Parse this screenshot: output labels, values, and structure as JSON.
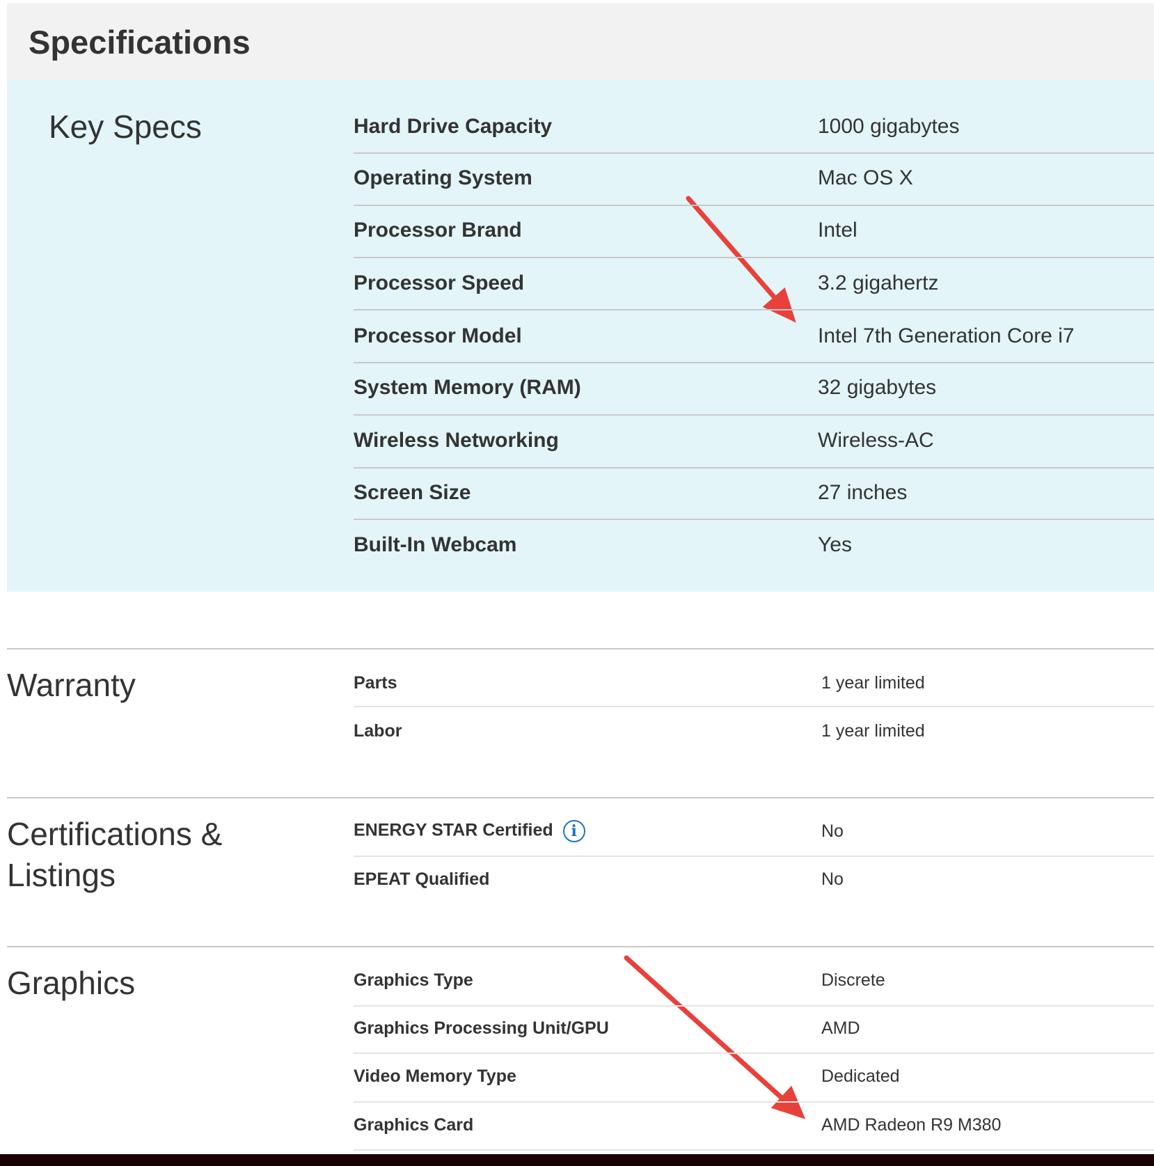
{
  "header": {
    "title": "Specifications"
  },
  "key_specs": {
    "title": "Key Specs",
    "rows": [
      {
        "label": "Hard Drive Capacity",
        "value": "1000 gigabytes"
      },
      {
        "label": "Operating System",
        "value": "Mac OS X"
      },
      {
        "label": "Processor Brand",
        "value": "Intel"
      },
      {
        "label": "Processor Speed",
        "value": "3.2 gigahertz"
      },
      {
        "label": "Processor Model",
        "value": "Intel 7th Generation Core i7"
      },
      {
        "label": "System Memory (RAM)",
        "value": "32 gigabytes"
      },
      {
        "label": "Wireless Networking",
        "value": "Wireless-AC"
      },
      {
        "label": "Screen Size",
        "value": "27 inches"
      },
      {
        "label": "Built-In Webcam",
        "value": "Yes"
      }
    ]
  },
  "warranty": {
    "title": "Warranty",
    "rows": [
      {
        "label": "Parts",
        "value": "1 year limited"
      },
      {
        "label": "Labor",
        "value": "1 year limited"
      }
    ]
  },
  "certifications": {
    "title_line1": "Certifications &",
    "title_line2": "Listings",
    "rows": [
      {
        "label": "ENERGY STAR Certified",
        "value": "No",
        "info_icon": "info-icon"
      },
      {
        "label": "EPEAT Qualified",
        "value": "No"
      }
    ]
  },
  "graphics": {
    "title": "Graphics",
    "rows": [
      {
        "label": "Graphics Type",
        "value": "Discrete"
      },
      {
        "label": "Graphics Processing Unit/GPU",
        "value": "AMD"
      },
      {
        "label": "Video Memory Type",
        "value": "Dedicated"
      },
      {
        "label": "Graphics Card",
        "value": "AMD Radeon R9 M380"
      }
    ]
  },
  "colors": {
    "key_specs_bg": "#e3f5f8",
    "header_bg": "#f2f2f2",
    "annotation_arrow": "#e8413b",
    "info_icon": "#1a73c7"
  }
}
